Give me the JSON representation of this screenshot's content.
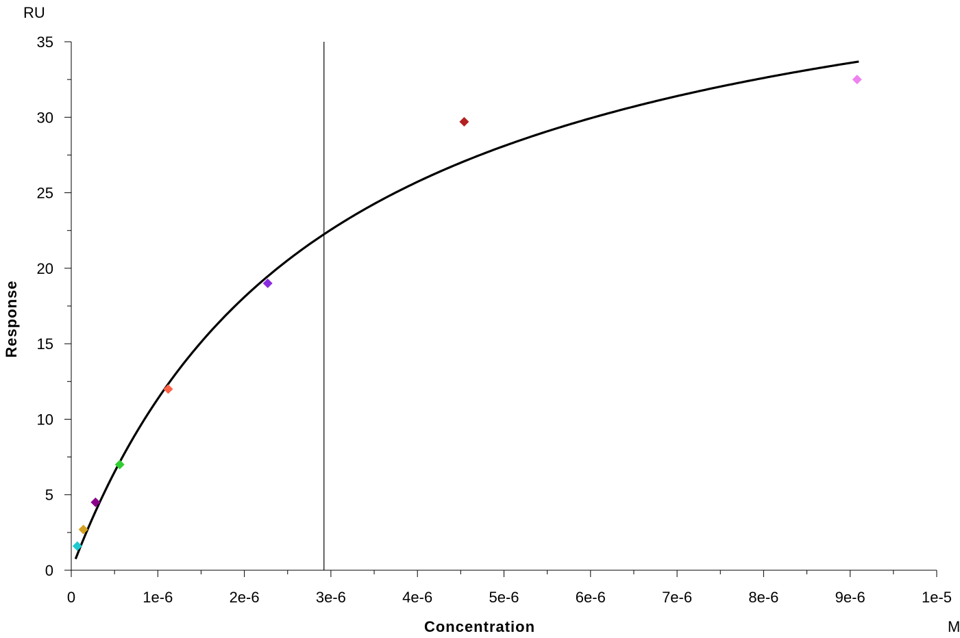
{
  "chart_data": {
    "type": "scatter",
    "xlabel": "Concentration",
    "ylabel": "Response",
    "x_unit": "M",
    "y_unit": "RU",
    "xlim": [
      0,
      1e-05
    ],
    "ylim": [
      0,
      35
    ],
    "x_ticks": [
      0,
      1e-06,
      2e-06,
      3e-06,
      4e-06,
      5e-06,
      6e-06,
      7e-06,
      8e-06,
      9e-06,
      1e-05
    ],
    "x_tick_labels": [
      "0",
      "1e-6",
      "2e-6",
      "3e-6",
      "4e-6",
      "5e-6",
      "6e-6",
      "7e-6",
      "8e-6",
      "9e-6",
      "1e-5"
    ],
    "y_ticks": [
      0,
      5,
      10,
      15,
      20,
      25,
      30,
      35
    ],
    "y_tick_labels": [
      "0",
      "5",
      "10",
      "15",
      "20",
      "25",
      "30",
      "35"
    ],
    "grid": false,
    "points": [
      {
        "x": 7e-08,
        "y": 1.6,
        "color": "#20c8d0"
      },
      {
        "x": 1.4e-07,
        "y": 2.7,
        "color": "#d4a020"
      },
      {
        "x": 2.8e-07,
        "y": 4.5,
        "color": "#8b008b"
      },
      {
        "x": 5.6e-07,
        "y": 7.0,
        "color": "#32cd32"
      },
      {
        "x": 1.12e-06,
        "y": 12.0,
        "color": "#ff6347"
      },
      {
        "x": 2.27e-06,
        "y": 19.0,
        "color": "#8a2be2"
      },
      {
        "x": 4.54e-06,
        "y": 29.7,
        "color": "#b22222"
      },
      {
        "x": 9.08e-06,
        "y": 32.5,
        "color": "#ee82ee"
      }
    ],
    "fit_curve": {
      "model": "steady-state affinity",
      "Rmax": 44.5,
      "KD": 2.92e-06,
      "x_range": [
        5e-08,
        9.1e-06
      ],
      "color": "#000000"
    },
    "vertical_line": {
      "x": 2.92e-06,
      "color": "#000000"
    }
  }
}
